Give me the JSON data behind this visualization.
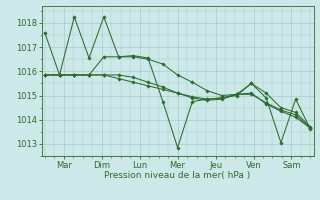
{
  "background_color": "#cce8e8",
  "grid_color": "#aacccc",
  "line_color": "#2d6b2d",
  "xlabel": "Pression niveau de la mer( hPa )",
  "ylim": [
    1012.5,
    1018.7
  ],
  "xlim": [
    -0.5,
    42.5
  ],
  "yticks": [
    1013,
    1014,
    1015,
    1016,
    1017,
    1018
  ],
  "xtick_positions": [
    3,
    9,
    15,
    21,
    27,
    33,
    39
  ],
  "xtick_labels": [
    "Mar",
    "Dim",
    "Lun",
    "Mer",
    "Jeu",
    "Ven",
    "Sam"
  ],
  "series": [
    [
      1017.6,
      1015.85,
      1018.25,
      1016.55,
      1018.25,
      1016.6,
      1016.65,
      1016.55,
      1014.75,
      1012.85,
      1014.75,
      1014.85,
      1014.9,
      1015.0,
      1015.5,
      1014.9,
      1013.05,
      1014.85,
      1013.6
    ],
    [
      1015.85,
      1015.85,
      1015.85,
      1015.85,
      1016.6,
      1016.6,
      1016.6,
      1016.5,
      1016.3,
      1015.85,
      1015.55,
      1015.2,
      1015.0,
      1015.05,
      1015.5,
      1015.1,
      1014.5,
      1014.3,
      1013.7
    ],
    [
      1015.85,
      1015.85,
      1015.85,
      1015.85,
      1015.85,
      1015.85,
      1015.75,
      1015.55,
      1015.35,
      1015.1,
      1014.9,
      1014.8,
      1014.85,
      1015.05,
      1015.1,
      1014.65,
      1014.35,
      1014.1,
      1013.65
    ],
    [
      1015.85,
      1015.85,
      1015.85,
      1015.85,
      1015.85,
      1015.7,
      1015.55,
      1015.4,
      1015.25,
      1015.1,
      1014.95,
      1014.85,
      1014.9,
      1015.05,
      1015.05,
      1014.7,
      1014.4,
      1014.2,
      1013.65
    ]
  ]
}
